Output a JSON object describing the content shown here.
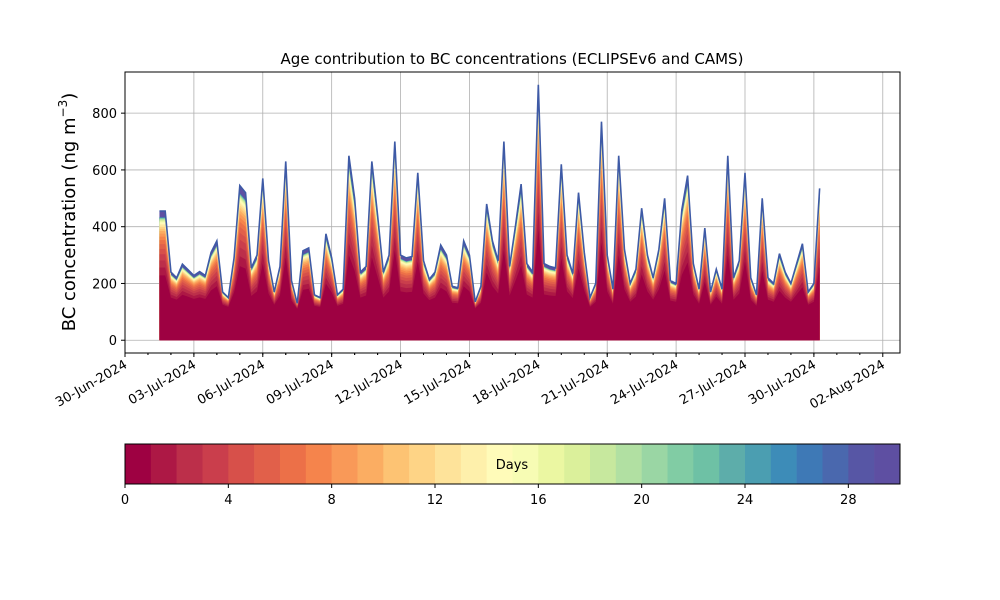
{
  "chart_data": {
    "type": "area",
    "title": "Age contribution to BC concentrations (ECLIPSEv6 and CAMS)",
    "ylabel": "BC concentration (ng m",
    "ylabel_superscript": "−3",
    "ylabel_close": ")",
    "xlabel": "",
    "ylim": [
      -45,
      945
    ],
    "yticks": [
      0,
      200,
      400,
      600,
      800
    ],
    "xticks": [
      "30-Jun-2024",
      "03-Jul-2024",
      "06-Jul-2024",
      "09-Jul-2024",
      "12-Jul-2024",
      "15-Jul-2024",
      "18-Jul-2024",
      "21-Jul-2024",
      "24-Jul-2024",
      "27-Jul-2024",
      "30-Jul-2024",
      "02-Aug-2024"
    ],
    "xlim": [
      "2024-06-30T00:00",
      "2024-08-02T18:00"
    ],
    "grid": true,
    "stacking": "cumulative by emission age (days 0–30)",
    "age_bins_days": 30,
    "total_series": [
      [
        "2024-07-01T12:00",
        455
      ],
      [
        "2024-07-01T18:00",
        455
      ],
      [
        "2024-07-02T00:00",
        240
      ],
      [
        "2024-07-02T06:00",
        220
      ],
      [
        "2024-07-02T12:00",
        268
      ],
      [
        "2024-07-02T18:00",
        248
      ],
      [
        "2024-07-03T00:00",
        228
      ],
      [
        "2024-07-03T06:00",
        242
      ],
      [
        "2024-07-03T12:00",
        228
      ],
      [
        "2024-07-03T18:00",
        310
      ],
      [
        "2024-07-04T00:00",
        350
      ],
      [
        "2024-07-04T06:00",
        170
      ],
      [
        "2024-07-04T12:00",
        150
      ],
      [
        "2024-07-04T18:00",
        290
      ],
      [
        "2024-07-05T00:00",
        545
      ],
      [
        "2024-07-05T06:00",
        520
      ],
      [
        "2024-07-05T12:00",
        255
      ],
      [
        "2024-07-05T18:00",
        300
      ],
      [
        "2024-07-06T00:00",
        570
      ],
      [
        "2024-07-06T06:00",
        280
      ],
      [
        "2024-07-06T12:00",
        170
      ],
      [
        "2024-07-06T18:00",
        260
      ],
      [
        "2024-07-07T00:00",
        630
      ],
      [
        "2024-07-07T06:00",
        210
      ],
      [
        "2024-07-07T12:00",
        130
      ],
      [
        "2024-07-07T18:00",
        315
      ],
      [
        "2024-07-08T00:00",
        325
      ],
      [
        "2024-07-08T06:00",
        160
      ],
      [
        "2024-07-08T12:00",
        150
      ],
      [
        "2024-07-08T18:00",
        375
      ],
      [
        "2024-07-09T00:00",
        290
      ],
      [
        "2024-07-09T06:00",
        160
      ],
      [
        "2024-07-09T12:00",
        180
      ],
      [
        "2024-07-09T18:00",
        650
      ],
      [
        "2024-07-10T00:00",
        500
      ],
      [
        "2024-07-10T06:00",
        240
      ],
      [
        "2024-07-10T12:00",
        260
      ],
      [
        "2024-07-10T18:00",
        630
      ],
      [
        "2024-07-11T00:00",
        440
      ],
      [
        "2024-07-11T06:00",
        240
      ],
      [
        "2024-07-11T12:00",
        300
      ],
      [
        "2024-07-11T18:00",
        700
      ],
      [
        "2024-07-12T00:00",
        300
      ],
      [
        "2024-07-12T06:00",
        290
      ],
      [
        "2024-07-12T12:00",
        295
      ],
      [
        "2024-07-12T18:00",
        590
      ],
      [
        "2024-07-13T00:00",
        280
      ],
      [
        "2024-07-13T06:00",
        215
      ],
      [
        "2024-07-13T12:00",
        240
      ],
      [
        "2024-07-13T18:00",
        335
      ],
      [
        "2024-07-14T00:00",
        300
      ],
      [
        "2024-07-14T06:00",
        190
      ],
      [
        "2024-07-14T12:00",
        185
      ],
      [
        "2024-07-14T18:00",
        350
      ],
      [
        "2024-07-15T00:00",
        300
      ],
      [
        "2024-07-15T06:00",
        135
      ],
      [
        "2024-07-15T12:00",
        190
      ],
      [
        "2024-07-15T18:00",
        480
      ],
      [
        "2024-07-16T00:00",
        350
      ],
      [
        "2024-07-16T06:00",
        280
      ],
      [
        "2024-07-16T12:00",
        700
      ],
      [
        "2024-07-16T18:00",
        260
      ],
      [
        "2024-07-17T00:00",
        400
      ],
      [
        "2024-07-17T06:00",
        550
      ],
      [
        "2024-07-17T12:00",
        270
      ],
      [
        "2024-07-17T18:00",
        240
      ],
      [
        "2024-07-18T00:00",
        900
      ],
      [
        "2024-07-18T06:00",
        270
      ],
      [
        "2024-07-18T12:00",
        260
      ],
      [
        "2024-07-18T18:00",
        255
      ],
      [
        "2024-07-19T00:00",
        620
      ],
      [
        "2024-07-19T06:00",
        300
      ],
      [
        "2024-07-19T12:00",
        235
      ],
      [
        "2024-07-19T18:00",
        520
      ],
      [
        "2024-07-20T00:00",
        310
      ],
      [
        "2024-07-20T06:00",
        150
      ],
      [
        "2024-07-20T12:00",
        200
      ],
      [
        "2024-07-20T18:00",
        770
      ],
      [
        "2024-07-21T00:00",
        300
      ],
      [
        "2024-07-21T06:00",
        180
      ],
      [
        "2024-07-21T12:00",
        650
      ],
      [
        "2024-07-21T18:00",
        320
      ],
      [
        "2024-07-22T00:00",
        200
      ],
      [
        "2024-07-22T06:00",
        250
      ],
      [
        "2024-07-22T12:00",
        465
      ],
      [
        "2024-07-22T18:00",
        300
      ],
      [
        "2024-07-23T00:00",
        220
      ],
      [
        "2024-07-23T06:00",
        320
      ],
      [
        "2024-07-23T12:00",
        500
      ],
      [
        "2024-07-23T18:00",
        210
      ],
      [
        "2024-07-24T00:00",
        200
      ],
      [
        "2024-07-24T06:00",
        460
      ],
      [
        "2024-07-24T12:00",
        580
      ],
      [
        "2024-07-24T18:00",
        270
      ],
      [
        "2024-07-25T00:00",
        180
      ],
      [
        "2024-07-25T06:00",
        395
      ],
      [
        "2024-07-25T12:00",
        170
      ],
      [
        "2024-07-25T18:00",
        250
      ],
      [
        "2024-07-26T00:00",
        180
      ],
      [
        "2024-07-26T06:00",
        650
      ],
      [
        "2024-07-26T12:00",
        220
      ],
      [
        "2024-07-26T18:00",
        280
      ],
      [
        "2024-07-27T00:00",
        590
      ],
      [
        "2024-07-27T06:00",
        220
      ],
      [
        "2024-07-27T12:00",
        160
      ],
      [
        "2024-07-27T18:00",
        500
      ],
      [
        "2024-07-28T00:00",
        220
      ],
      [
        "2024-07-28T06:00",
        200
      ],
      [
        "2024-07-28T12:00",
        305
      ],
      [
        "2024-07-28T18:00",
        240
      ],
      [
        "2024-07-29T00:00",
        200
      ],
      [
        "2024-07-29T06:00",
        270
      ],
      [
        "2024-07-29T12:00",
        340
      ],
      [
        "2024-07-29T18:00",
        170
      ],
      [
        "2024-07-30T00:00",
        200
      ],
      [
        "2024-07-30T06:00",
        535
      ]
    ],
    "colorbar": {
      "label": "Days",
      "colormap": "Spectral",
      "ticks": [
        0,
        4,
        8,
        12,
        16,
        20,
        24,
        28
      ],
      "range": [
        0,
        30
      ],
      "colors": [
        "#9e0142",
        "#ad1845",
        "#bc2f4a",
        "#ca3e4c",
        "#d7504a",
        "#e1604a",
        "#ec7048",
        "#f5844c",
        "#f99958",
        "#fbad62",
        "#fdc373",
        "#fed486",
        "#fee39a",
        "#fef0ab",
        "#fffbb9",
        "#f7fcb4",
        "#ebf7a2",
        "#dbf09b",
        "#c7e89e",
        "#b1e0a2",
        "#9ad6a4",
        "#81cca4",
        "#6ec1a5",
        "#5dadaa",
        "#4b9eb1",
        "#3d8cb8",
        "#3e79b6",
        "#4a68ae",
        "#5756a5",
        "#5e4fa2"
      ]
    }
  }
}
